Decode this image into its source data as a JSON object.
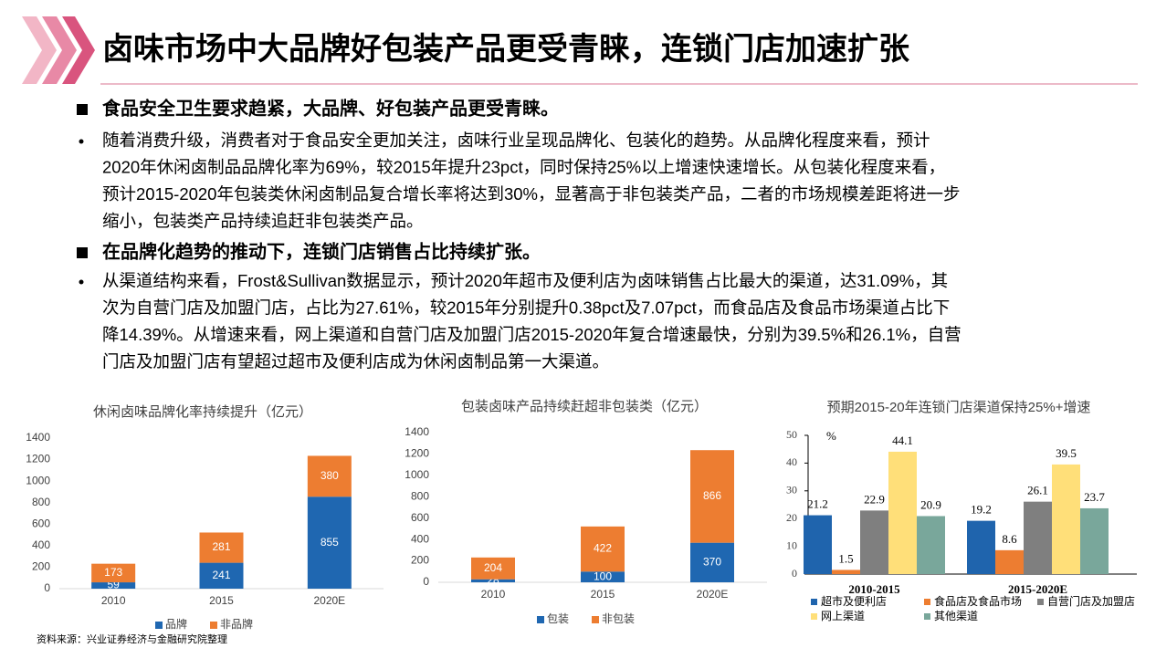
{
  "header": {
    "title": "卤味市场中大品牌好包装产品更受青睐，连锁门店加速扩张"
  },
  "sections": [
    {
      "heading": "食品安全卫生要求趋紧，大品牌、好包装产品更受青睐。",
      "lines": [
        "随着消费升级，消费者对于食品安全更加关注，卤味行业呈现品牌化、包装化的趋势。从品牌化程度来看，预计",
        "2020年休闲卤制品品牌化率为69%，较2015年提升23pct，同时保持25%以上增速快速增长。从包装化程度来看，",
        "预计2015-2020年包装类休闲卤制品复合增长率将达到30%，显著高于非包装类产品，二者的市场规模差距将进一步",
        "缩小，包装类产品持续追赶非包装类产品。"
      ]
    },
    {
      "heading": "在品牌化趋势的推动下，连锁门店销售占比持续扩张。",
      "lines": [
        "从渠道结构来看，Frost&Sullivan数据显示，预计2020年超市及便利店为卤味销售占比最大的渠道，达31.09%，其",
        "次为自营门店及加盟门店，占比为27.61%，较2015年分别提升0.38pct及7.07pct，而食品店及食品市场渠道占比下",
        "降14.39%。从增速来看，网上渠道和自营门店及加盟门店2015-2020年复合增速最快，分别为39.5%和26.1%，自营",
        "门店及加盟门店有望超过超市及便利店成为休闲卤制品第一大渠道。"
      ]
    }
  ],
  "source": "资料来源：兴业证券经济与金融研究院整理",
  "chart_data": [
    {
      "type": "bar",
      "stacked": true,
      "title": "休闲卤味品牌化率持续提升（亿元）",
      "categories": [
        "2010",
        "2015",
        "2020E"
      ],
      "series": [
        {
          "name": "品牌",
          "color": "#1f67b1",
          "values": [
            59,
            241,
            855
          ]
        },
        {
          "name": "非品牌",
          "color": "#ed7d31",
          "values": [
            173,
            281,
            380
          ]
        }
      ],
      "ylim": [
        0,
        1400
      ],
      "yticks": [
        0,
        200,
        400,
        600,
        800,
        1000,
        1200,
        1400
      ],
      "legend": "bottom"
    },
    {
      "type": "bar",
      "stacked": true,
      "title": "包装卤味产品持续赶超非包装类（亿元）",
      "categories": [
        "2010",
        "2015",
        "2020E"
      ],
      "series": [
        {
          "name": "包装",
          "color": "#1f67b1",
          "values": [
            28,
            100,
            370
          ]
        },
        {
          "name": "非包装",
          "color": "#ed7d31",
          "values": [
            204,
            422,
            866
          ]
        }
      ],
      "ylim": [
        0,
        1400
      ],
      "yticks": [
        0,
        200,
        400,
        600,
        800,
        1000,
        1200,
        1400
      ],
      "legend": "bottom"
    },
    {
      "type": "bar",
      "stacked": false,
      "title": "预期2015-20年连锁门店渠道保持25%+增速",
      "ylabel": "%",
      "categories": [
        "2010-2015",
        "2015-2020E"
      ],
      "series": [
        {
          "name": "超市及便利店",
          "color": "#1f64ad",
          "values": [
            21.2,
            19.2
          ]
        },
        {
          "name": "食品店及食品市场",
          "color": "#ed7d31",
          "values": [
            1.5,
            8.6
          ]
        },
        {
          "name": "自营门店及加盟店",
          "color": "#7f7f7f",
          "values": [
            22.9,
            26.1
          ]
        },
        {
          "name": "网上渠道",
          "color": "#ffdf79",
          "values": [
            44.1,
            39.5
          ]
        },
        {
          "name": "其他渠道",
          "color": "#79a79b",
          "values": [
            20.9,
            23.7
          ]
        }
      ],
      "ylim": [
        0,
        50
      ],
      "yticks": [
        0,
        10,
        20,
        30,
        40,
        50
      ],
      "legend": "bottom"
    }
  ]
}
